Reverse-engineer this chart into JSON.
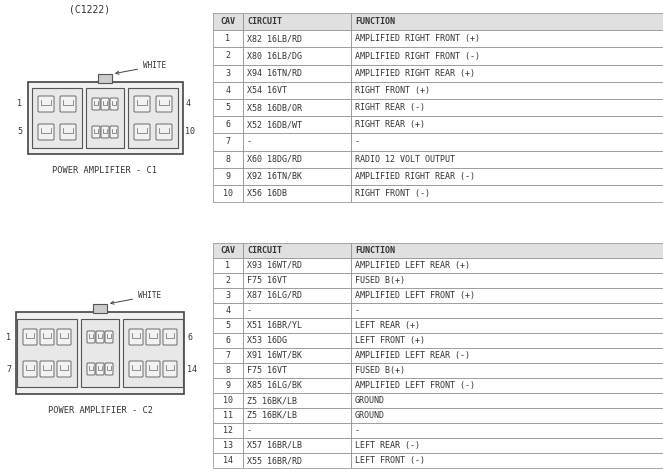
{
  "title_top": "(C1222)",
  "bg_color": "#ffffff",
  "table1_title": "POWER AMPLIFIER - C1",
  "table2_title": "POWER AMPLIFIER - C2",
  "table1_headers": [
    "CAV",
    "CIRCUIT",
    "FUNCTION"
  ],
  "table1_rows": [
    [
      "1",
      "X82 16LB/RD",
      "AMPLIFIED RIGHT FRONT (+)"
    ],
    [
      "2",
      "X80 16LB/DG",
      "AMPLIFIED RIGHT FRONT (-)"
    ],
    [
      "3",
      "X94 16TN/RD",
      "AMPLIFIED RIGHT REAR (+)"
    ],
    [
      "4",
      "X54 16VT",
      "RIGHT FRONT (+)"
    ],
    [
      "5",
      "X58 16DB/OR",
      "RIGHT REAR (-)"
    ],
    [
      "6",
      "X52 16DB/WT",
      "RIGHT REAR (+)"
    ],
    [
      "7",
      "-",
      "-"
    ],
    [
      "8",
      "X60 18DG/RD",
      "RADIO 12 VOLT OUTPUT"
    ],
    [
      "9",
      "X92 16TN/BK",
      "AMPLIFIED RIGHT REAR (-)"
    ],
    [
      "10",
      "X56 16DB",
      "RIGHT FRONT (-)"
    ]
  ],
  "table2_headers": [
    "CAV",
    "CIRCUIT",
    "FUNCTION"
  ],
  "table2_rows": [
    [
      "1",
      "X93 16WT/RD",
      "AMPLIFIED LEFT REAR (+)"
    ],
    [
      "2",
      "F75 16VT",
      "FUSED B(+)"
    ],
    [
      "3",
      "X87 16LG/RD",
      "AMPLIFIED LEFT FRONT (+)"
    ],
    [
      "4",
      "-",
      "-"
    ],
    [
      "5",
      "X51 16BR/YL",
      "LEFT REAR (+)"
    ],
    [
      "6",
      "X53 16DG",
      "LEFT FRONT (+)"
    ],
    [
      "7",
      "X91 16WT/BK",
      "AMPLIFIED LEFT REAR (-)"
    ],
    [
      "8",
      "F75 16VT",
      "FUSED B(+)"
    ],
    [
      "9",
      "X85 16LG/BK",
      "AMPLIFIED LEFT FRONT (-)"
    ],
    [
      "10",
      "Z5 16BK/LB",
      "GROUND"
    ],
    [
      "11",
      "Z5 16BK/LB",
      "GROUND"
    ],
    [
      "12",
      "-",
      "-"
    ],
    [
      "13",
      "X57 16BR/LB",
      "LEFT REAR (-)"
    ],
    [
      "14",
      "X55 16BR/RD",
      "LEFT FRONT (-)"
    ]
  ],
  "table_line_color": "#888888",
  "text_color": "#333333",
  "header_bg": "#e0e0e0",
  "font_family": "monospace",
  "font_size_table": 6.0,
  "font_size_label": 6.0
}
